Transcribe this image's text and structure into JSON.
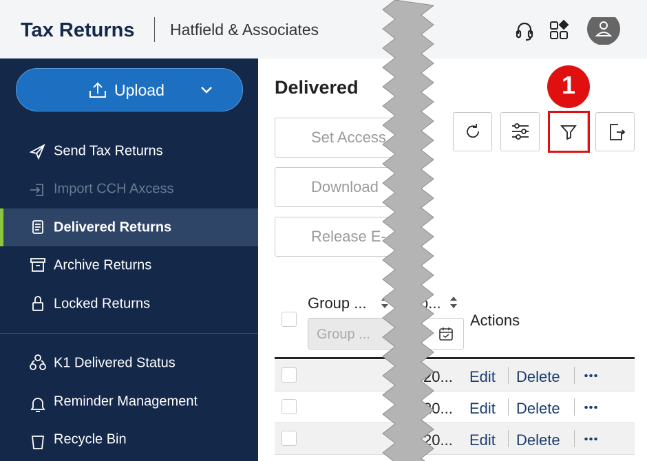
{
  "header": {
    "title": "Tax Returns",
    "company": "Hatfield & Associates"
  },
  "sidebar": {
    "upload": "Upload",
    "nav": [
      "Send Tax Returns",
      "Import CCH Axcess",
      "Delivered Returns",
      "Archive Returns",
      "Locked Returns"
    ],
    "nav_secondary": [
      "K1 Delivered Status",
      "Reminder Management",
      "Recycle Bin"
    ]
  },
  "main": {
    "title": "Delivered",
    "actions": [
      "Set Access",
      "Download",
      "Release E-"
    ],
    "callout": "1",
    "table": {
      "columns": [
        "Group ...",
        "o...",
        "Actions"
      ],
      "group_filter": "Group ...",
      "rows": [
        {
          "date": "20...",
          "edit": "Edit",
          "delete": "Delete"
        },
        {
          "date": "20...",
          "edit": "Edit",
          "delete": "Delete"
        },
        {
          "date": "20...",
          "edit": "Edit",
          "delete": "Delete"
        }
      ]
    }
  }
}
